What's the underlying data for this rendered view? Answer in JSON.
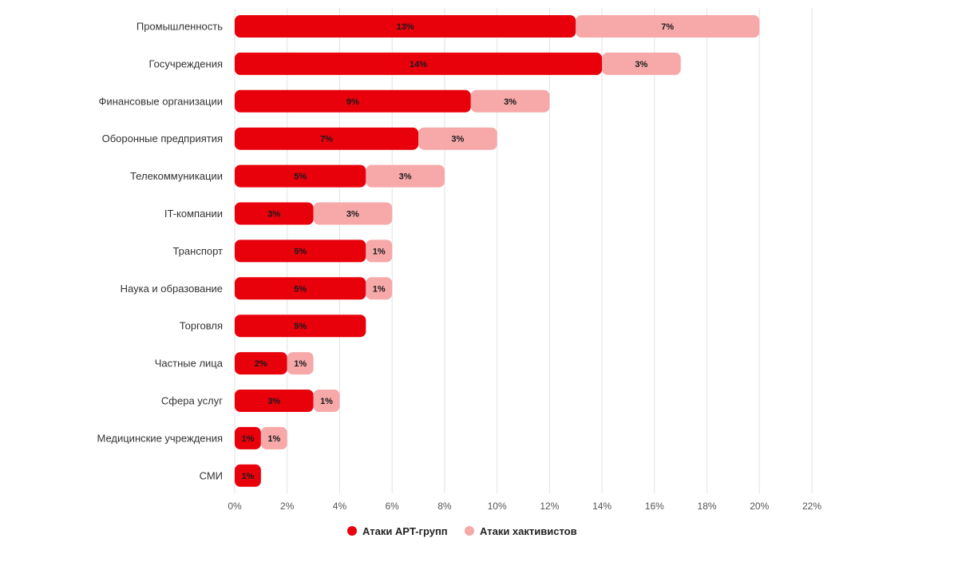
{
  "chart_data": {
    "type": "bar",
    "orientation": "horizontal",
    "stacked": true,
    "title": "",
    "xlabel": "",
    "ylabel": "",
    "xlim": [
      0,
      22
    ],
    "ticks": [
      0,
      2,
      4,
      6,
      8,
      10,
      12,
      14,
      16,
      18,
      20,
      22
    ],
    "tick_suffix": "%",
    "grid": true,
    "legend_position": "bottom-center",
    "categories": [
      "Промышленность",
      "Госучреждения",
      "Финансовые организации",
      "Оборонные предприятия",
      "Телекоммуникации",
      "IT-компании",
      "Транспорт",
      "Наука и образование",
      "Торговля",
      "Частные лица",
      "Сфера услуг",
      "Медицинские учреждения",
      "СМИ"
    ],
    "series": [
      {
        "name": "Атаки APT-групп",
        "color": "#e8000b",
        "values": [
          13,
          14,
          9,
          7,
          5,
          3,
          5,
          5,
          5,
          2,
          3,
          1,
          1
        ]
      },
      {
        "name": "Атаки хактивистов",
        "color": "#f7a8a8",
        "values": [
          7,
          3,
          3,
          3,
          3,
          3,
          1,
          1,
          0,
          1,
          1,
          1,
          0
        ]
      }
    ]
  }
}
